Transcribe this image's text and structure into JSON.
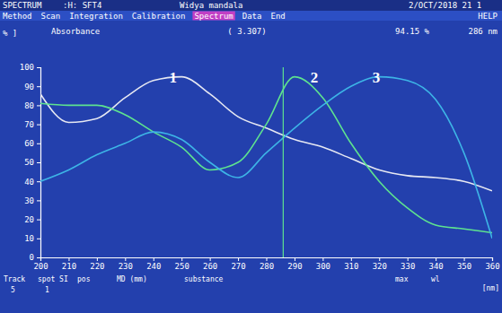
{
  "chart_data": {
    "type": "line",
    "title": "Absorbance",
    "x_label": "[nm]",
    "y_label": "% ]",
    "x": [
      200,
      210,
      220,
      230,
      240,
      250,
      260,
      270,
      280,
      290,
      300,
      310,
      320,
      330,
      340,
      350,
      360
    ],
    "series": [
      {
        "name": "1",
        "color": "#e6e8f2",
        "values": [
          86,
          71,
          73,
          84,
          93,
          95,
          86,
          74,
          68,
          62,
          58,
          52,
          46,
          43,
          42,
          40,
          35
        ]
      },
      {
        "name": "2",
        "color": "#5ee38f",
        "values": [
          81,
          80,
          80,
          75,
          66,
          58,
          46,
          50,
          70,
          95,
          84,
          60,
          40,
          26,
          17,
          15,
          13
        ]
      },
      {
        "name": "3",
        "color": "#3db4e6",
        "values": [
          40,
          46,
          54,
          60,
          66,
          62,
          50,
          42,
          55,
          68,
          80,
          90,
          95,
          93,
          83,
          55,
          10
        ]
      }
    ],
    "xlim": [
      200,
      360
    ],
    "ylim": [
      0,
      100
    ],
    "xticks": [
      200,
      210,
      220,
      230,
      240,
      250,
      260,
      270,
      280,
      290,
      300,
      310,
      320,
      330,
      340,
      350,
      360
    ],
    "yticks": [
      0,
      10,
      20,
      30,
      40,
      50,
      60,
      70,
      80,
      90,
      100
    ],
    "grid": false,
    "annotations": [
      {
        "text": "1",
        "x": 247,
        "y": 94
      },
      {
        "text": "2",
        "x": 297,
        "y": 94
      },
      {
        "text": "3",
        "x": 319,
        "y": 94
      }
    ],
    "cursor": {
      "x": 286,
      "x_label": "286 nm",
      "y_label": "94.15 %",
      "value_label": "( 3.307)"
    }
  },
  "screen": {
    "header": [
      "SPECTRUM",
      ":H: SFT4",
      "Widya mandala",
      "2/OCT/2018 21 1"
    ],
    "menu": [
      {
        "text": "Method"
      },
      {
        "text": "Scan"
      },
      {
        "text": "Integration"
      },
      {
        "text": "Calibration"
      },
      {
        "text": "Spectrum",
        "selected": true
      },
      {
        "text": "Data"
      },
      {
        "text": "End"
      }
    ],
    "help": "HELP",
    "footer": [
      {
        "label": "Track",
        "value": "5"
      },
      {
        "label": "spot SI",
        "value": "1"
      },
      {
        "label": "pos"
      },
      {
        "label": "MD (mm)"
      },
      {
        "label": "substance"
      },
      {
        "label": "max"
      },
      {
        "label": "wl"
      }
    ]
  }
}
